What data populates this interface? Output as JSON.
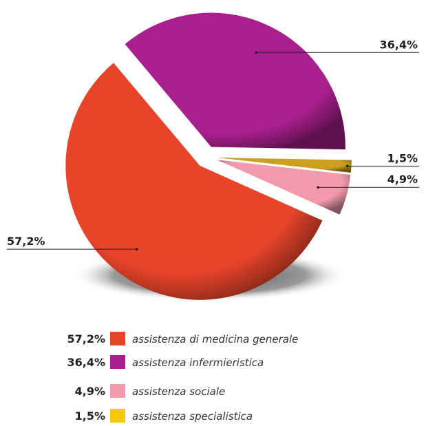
{
  "chart_data": {
    "type": "pie",
    "categories": [
      "assistenza di medicina generale",
      "assistenza infermieristica",
      "assistenza sociale",
      "assistenza specialistica"
    ],
    "values": [
      57.2,
      36.4,
      4.9,
      1.5
    ],
    "value_labels": [
      "57,2%",
      "36,4%",
      "4,9%",
      "1,5%"
    ],
    "colors": [
      "#e8442a",
      "#a91f8d",
      "#f29aac",
      "#f5c800"
    ]
  }
}
